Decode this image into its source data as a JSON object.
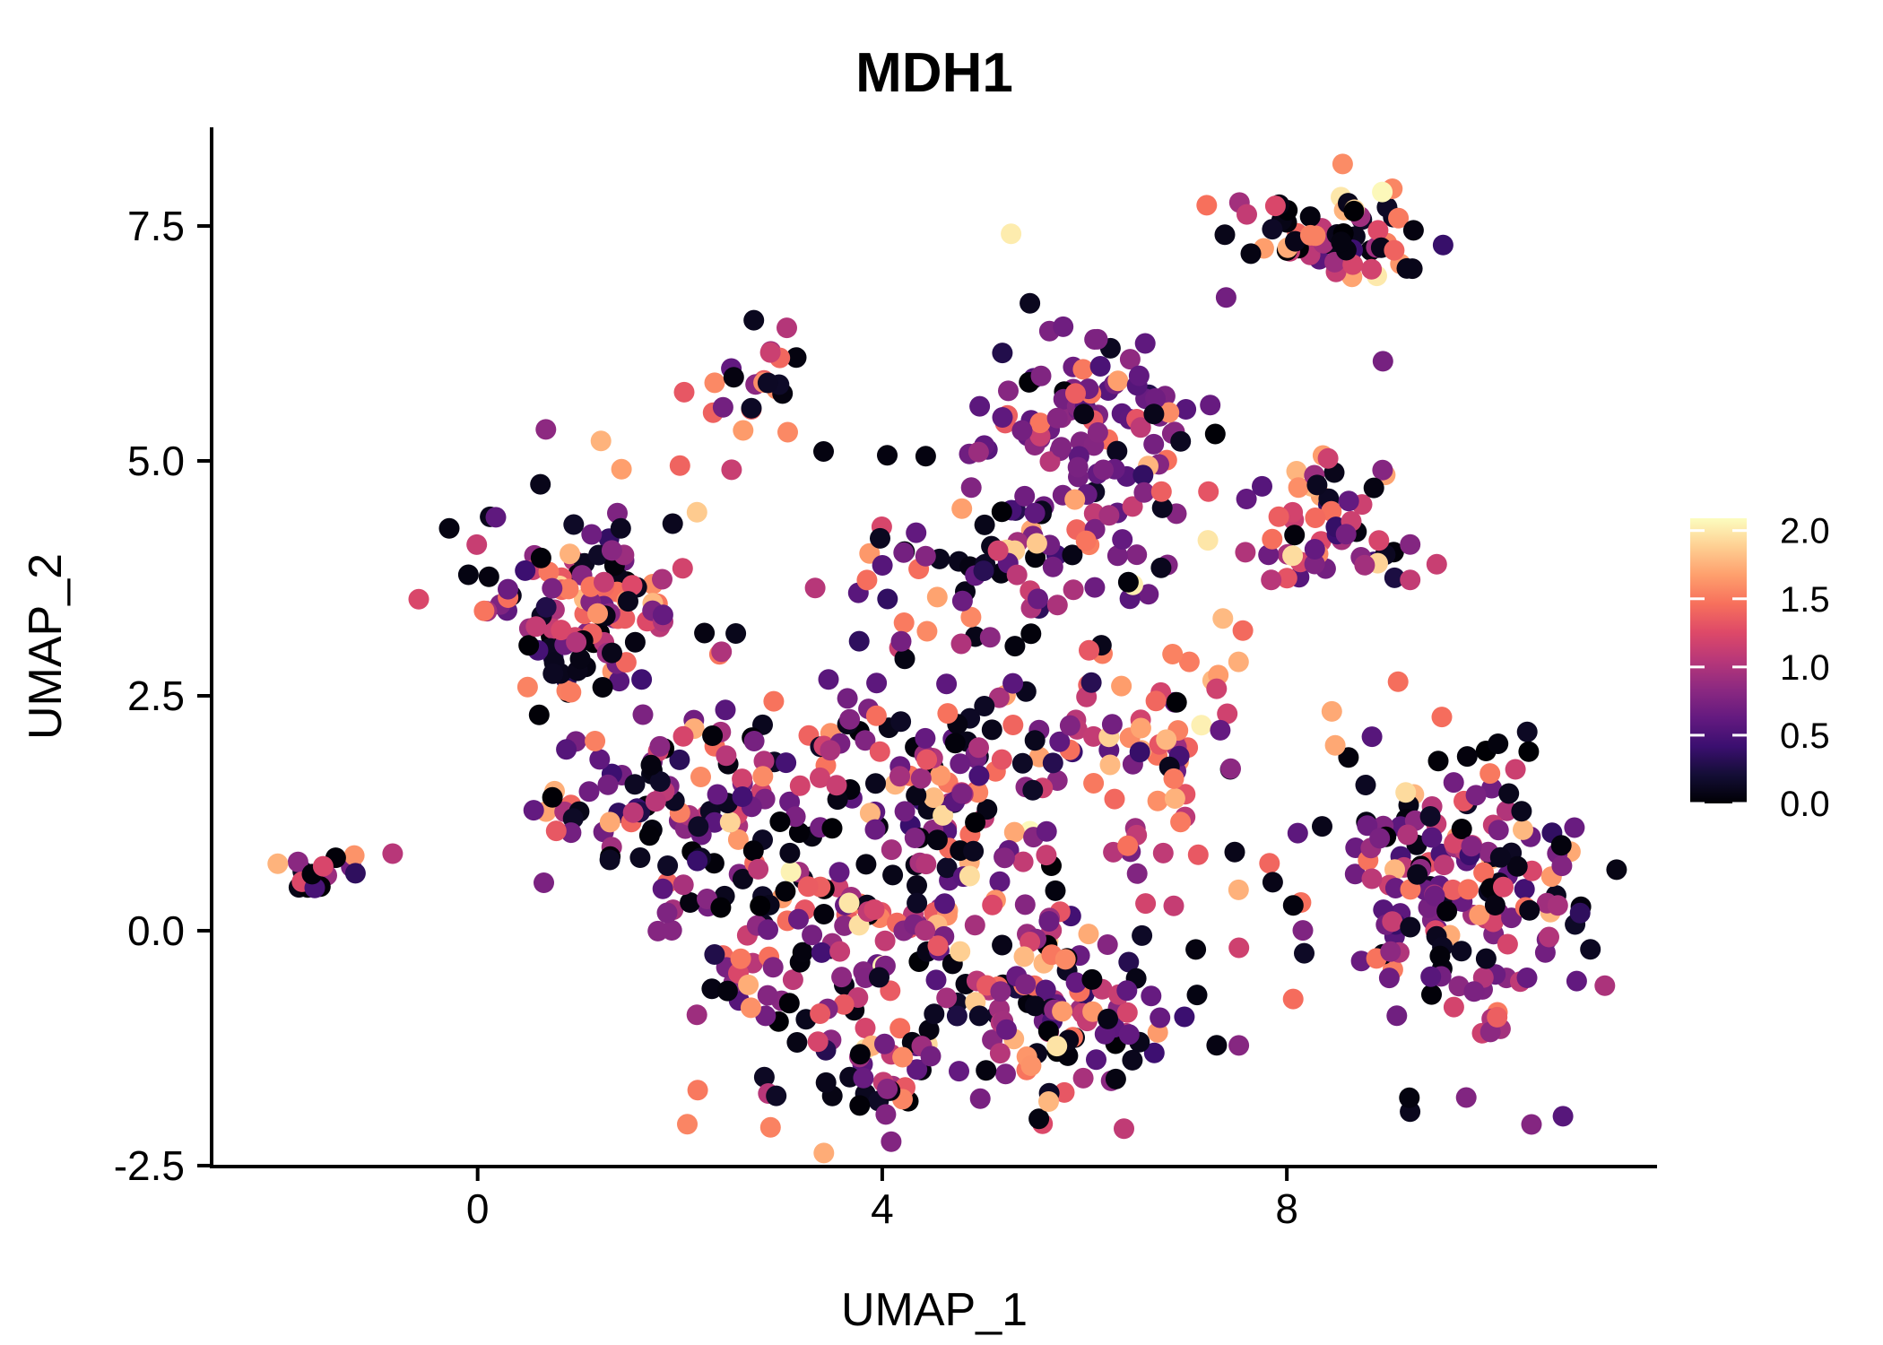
{
  "legend": {
    "tick_labels": [
      "2.0",
      "1.5",
      "1.0",
      "0.5",
      "0.0"
    ],
    "tick_values": [
      2.0,
      1.5,
      1.0,
      0.5,
      0.0
    ],
    "domain": [
      0,
      2.09
    ],
    "orientation": "vertical",
    "position": "right"
  },
  "chart_data": {
    "type": "scatter",
    "title": "MDH1",
    "subtitle": "",
    "xlabel": "UMAP_1",
    "ylabel": "UMAP_2",
    "xlim": [
      -2.63,
      11.66
    ],
    "ylim": [
      -2.51,
      8.55
    ],
    "x_ticks": [
      0,
      4,
      8
    ],
    "x_tick_labels": [
      "0",
      "4",
      "8"
    ],
    "y_ticks": [
      -2.5,
      0.0,
      2.5,
      5.0,
      7.5
    ],
    "y_tick_labels": [
      "-2.5",
      "0.0",
      "2.5",
      "5.0",
      "7.5"
    ],
    "grid": false,
    "background": "#ffffff",
    "axis_color": "#000000",
    "point_radius_px": 11.5,
    "seed": 7,
    "color_scale": {
      "name": "magma",
      "domain": [
        0,
        2.09
      ],
      "stops": [
        [
          0.0,
          "#000004"
        ],
        [
          0.1,
          "#140E36"
        ],
        [
          0.2,
          "#3B0F70"
        ],
        [
          0.3,
          "#641A80"
        ],
        [
          0.4,
          "#8C2981"
        ],
        [
          0.5,
          "#B73779"
        ],
        [
          0.6,
          "#DE4968"
        ],
        [
          0.7,
          "#F7705C"
        ],
        [
          0.8,
          "#FE9F6D"
        ],
        [
          0.9,
          "#FECF92"
        ],
        [
          1.0,
          "#FCFDBF"
        ]
      ]
    },
    "value_bins": [
      [
        0.0,
        0.15
      ],
      [
        0.25,
        0.5
      ],
      [
        0.55,
        0.85
      ],
      [
        0.9,
        1.25
      ],
      [
        1.3,
        1.55
      ],
      [
        1.55,
        1.8
      ],
      [
        1.85,
        2.09
      ]
    ],
    "clusters": [
      {
        "name": "far-left",
        "cx": -1.65,
        "cy": 0.62,
        "sx": 0.16,
        "sy": 0.13,
        "n": 15,
        "mix": [
          0.45,
          0.08,
          0.12,
          0.2,
          0.1,
          0.05,
          0.0
        ]
      },
      {
        "name": "left-main",
        "cx": 1.15,
        "cy": 3.7,
        "sx": 0.55,
        "sy": 0.5,
        "n": 90,
        "mix": [
          0.26,
          0.07,
          0.2,
          0.22,
          0.13,
          0.09,
          0.03
        ]
      },
      {
        "name": "left-core-dark",
        "cx": 0.9,
        "cy": 2.9,
        "sx": 0.28,
        "sy": 0.28,
        "n": 28,
        "mix": [
          0.55,
          0.08,
          0.12,
          0.12,
          0.08,
          0.05,
          0.0
        ]
      },
      {
        "name": "left-lower",
        "cx": 1.35,
        "cy": 1.35,
        "sx": 0.38,
        "sy": 0.32,
        "n": 30,
        "mix": [
          0.3,
          0.05,
          0.25,
          0.2,
          0.12,
          0.08,
          0.0
        ]
      },
      {
        "name": "left-arm",
        "cx": 2.15,
        "cy": 1.5,
        "sx": 0.45,
        "sy": 0.6,
        "n": 42,
        "mix": [
          0.3,
          0.06,
          0.24,
          0.2,
          0.12,
          0.06,
          0.02
        ]
      },
      {
        "name": "top-left-small",
        "cx": 2.72,
        "cy": 5.82,
        "sx": 0.3,
        "sy": 0.28,
        "n": 22,
        "mix": [
          0.18,
          0.05,
          0.18,
          0.17,
          0.22,
          0.15,
          0.05
        ]
      },
      {
        "name": "mid-top-purple",
        "cx": 6.05,
        "cy": 5.3,
        "sx": 0.52,
        "sy": 0.52,
        "n": 110,
        "mix": [
          0.12,
          0.06,
          0.55,
          0.1,
          0.09,
          0.07,
          0.01
        ]
      },
      {
        "name": "top-right-main",
        "cx": 8.7,
        "cy": 7.45,
        "sx": 0.38,
        "sy": 0.25,
        "n": 48,
        "mix": [
          0.28,
          0.05,
          0.2,
          0.17,
          0.13,
          0.1,
          0.07
        ]
      },
      {
        "name": "top-right-tail",
        "cx": 7.9,
        "cy": 7.4,
        "sx": 0.28,
        "sy": 0.18,
        "n": 18,
        "mix": [
          0.3,
          0.05,
          0.22,
          0.2,
          0.13,
          0.1,
          0.0
        ]
      },
      {
        "name": "right-mid",
        "cx": 8.5,
        "cy": 4.35,
        "sx": 0.42,
        "sy": 0.42,
        "n": 55,
        "mix": [
          0.22,
          0.06,
          0.22,
          0.18,
          0.15,
          0.12,
          0.05
        ]
      },
      {
        "name": "right-big",
        "cx": 9.7,
        "cy": 0.5,
        "sx": 0.72,
        "sy": 0.78,
        "n": 185,
        "mix": [
          0.25,
          0.07,
          0.3,
          0.22,
          0.1,
          0.05,
          0.01
        ]
      },
      {
        "name": "central-west",
        "cx": 3.3,
        "cy": 0.2,
        "sx": 0.8,
        "sy": 0.9,
        "n": 125,
        "mix": [
          0.26,
          0.05,
          0.24,
          0.22,
          0.13,
          0.07,
          0.03
        ]
      },
      {
        "name": "central-east",
        "cx": 5.1,
        "cy": 0.1,
        "sx": 0.85,
        "sy": 0.95,
        "n": 150,
        "mix": [
          0.25,
          0.05,
          0.24,
          0.22,
          0.13,
          0.08,
          0.03
        ]
      },
      {
        "name": "central-south",
        "cx": 5.8,
        "cy": -0.9,
        "sx": 0.65,
        "sy": 0.5,
        "n": 60,
        "mix": [
          0.28,
          0.05,
          0.26,
          0.22,
          0.11,
          0.06,
          0.02
        ]
      },
      {
        "name": "central-north-band",
        "cx": 4.4,
        "cy": 1.95,
        "sx": 1.0,
        "sy": 0.5,
        "n": 80,
        "mix": [
          0.24,
          0.05,
          0.26,
          0.2,
          0.13,
          0.09,
          0.03
        ]
      },
      {
        "name": "south-arm",
        "cx": 3.7,
        "cy": -1.45,
        "sx": 0.5,
        "sy": 0.35,
        "n": 32,
        "mix": [
          0.3,
          0.04,
          0.28,
          0.22,
          0.1,
          0.05,
          0.01
        ]
      },
      {
        "name": "bridge-warm",
        "cx": 6.8,
        "cy": 2.1,
        "sx": 0.45,
        "sy": 0.5,
        "n": 45,
        "mix": [
          0.08,
          0.02,
          0.12,
          0.18,
          0.3,
          0.2,
          0.1
        ]
      },
      {
        "name": "mid-band",
        "cx": 5.3,
        "cy": 3.9,
        "sx": 0.85,
        "sy": 0.45,
        "n": 65,
        "mix": [
          0.25,
          0.07,
          0.3,
          0.15,
          0.12,
          0.08,
          0.03
        ]
      },
      {
        "name": "sparse-fill",
        "cx": 4.5,
        "cy": 2.3,
        "sx": 1.9,
        "sy": 1.3,
        "n": 40,
        "mix": [
          0.25,
          0.05,
          0.25,
          0.2,
          0.12,
          0.09,
          0.04
        ]
      }
    ],
    "outliers": [
      [
        -1.22,
        0.8,
        1.62
      ],
      [
        -1.25,
        0.68,
        0.7
      ],
      [
        -0.84,
        0.82,
        1.05
      ],
      [
        7.4,
        6.74,
        0.7
      ],
      [
        8.95,
        6.06,
        0.72
      ],
      [
        8.89,
        6.97,
        2.0
      ],
      [
        4.05,
        5.06,
        0.05
      ],
      [
        4.43,
        5.05,
        0.05
      ],
      [
        3.42,
        5.1,
        0.05
      ],
      [
        2.0,
        4.95,
        1.4
      ],
      [
        0.18,
        4.4,
        0.6
      ],
      [
        9.1,
        2.65,
        1.45
      ],
      [
        7.1,
        -0.2,
        0.05
      ],
      [
        6.6,
        6.25,
        0.6
      ],
      [
        3.15,
        6.1,
        0.05
      ],
      [
        2.1,
        0.3,
        0.05
      ]
    ]
  }
}
